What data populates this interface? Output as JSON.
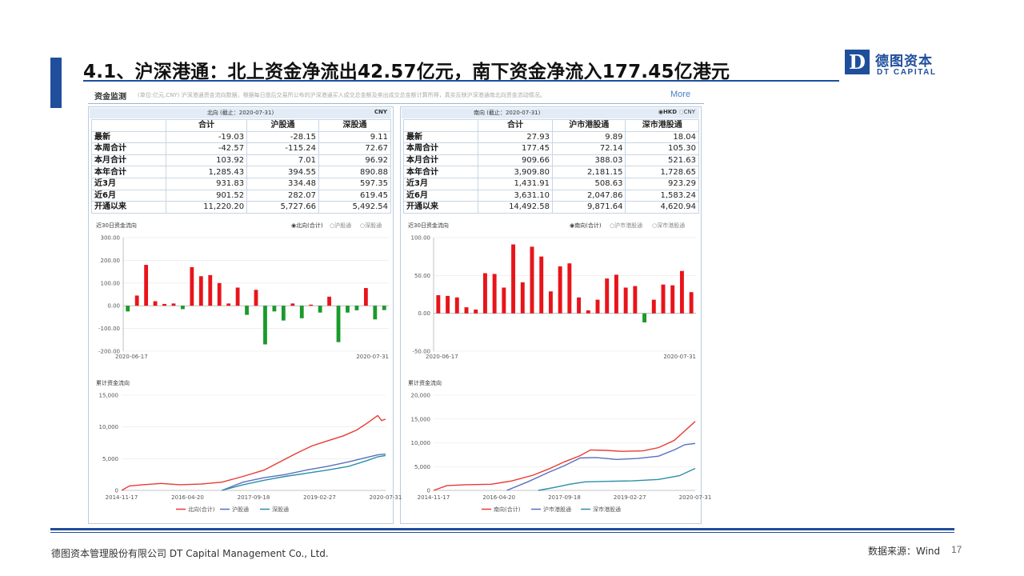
{
  "title": "4.1、沪深港通：北上资金净流出42.57亿元，南下资金净流入177.45亿港元",
  "logo": {
    "mark": "D",
    "cn": "德图资本",
    "en": "DT CAPITAL"
  },
  "panel": {
    "title": "资金监测",
    "desc": "(单位:亿元,CNY)  沪深港通资金流向数据，根据每日盘后交易所公布的沪深港通买入成交总金额及卖出成交总金额计算所得，真实反映沪深港通南北向资金流动情况。",
    "more": "More"
  },
  "north": {
    "head": "北向 (截止：2020-07-31)",
    "currency": "CNY",
    "columns": [
      "合计",
      "沪股通",
      "深股通"
    ],
    "rows": [
      {
        "label": "最新",
        "values": [
          "-19.03",
          "-28.15",
          "9.11"
        ]
      },
      {
        "label": "本周合计",
        "values": [
          "-42.57",
          "-115.24",
          "72.67"
        ]
      },
      {
        "label": "本月合计",
        "values": [
          "103.92",
          "7.01",
          "96.92"
        ]
      },
      {
        "label": "本年合计",
        "values": [
          "1,285.43",
          "394.55",
          "890.88"
        ]
      },
      {
        "label": "近3月",
        "values": [
          "931.83",
          "334.48",
          "597.35"
        ]
      },
      {
        "label": "近6月",
        "values": [
          "901.52",
          "282.07",
          "619.45"
        ]
      },
      {
        "label": "开通以来",
        "values": [
          "11,220.20",
          "5,727.66",
          "5,492.54"
        ]
      }
    ],
    "flow_title": "近30日资金流向",
    "radios": [
      "北向(合计)",
      "沪股通",
      "深股通"
    ],
    "cum_title": "累计资金流向",
    "cum_legend": [
      "北向(合计)",
      "沪股通",
      "深股通"
    ]
  },
  "south": {
    "head": "南向 (截止：2020-07-31)",
    "currency_opts": [
      "HKD",
      "CNY"
    ],
    "columns": [
      "合计",
      "沪市港股通",
      "深市港股通"
    ],
    "rows": [
      {
        "label": "最新",
        "values": [
          "27.93",
          "9.89",
          "18.04"
        ]
      },
      {
        "label": "本周合计",
        "values": [
          "177.45",
          "72.14",
          "105.30"
        ]
      },
      {
        "label": "本月合计",
        "values": [
          "909.66",
          "388.03",
          "521.63"
        ]
      },
      {
        "label": "本年合计",
        "values": [
          "3,909.80",
          "2,181.15",
          "1,728.65"
        ]
      },
      {
        "label": "近3月",
        "values": [
          "1,431.91",
          "508.63",
          "923.29"
        ]
      },
      {
        "label": "近6月",
        "values": [
          "3,631.10",
          "2,047.86",
          "1,583.24"
        ]
      },
      {
        "label": "开通以来",
        "values": [
          "14,492.58",
          "9,871.64",
          "4,620.94"
        ]
      }
    ],
    "flow_title": "近30日资金流向",
    "radios": [
      "南向(合计)",
      "沪市港股通",
      "深市港股通"
    ],
    "cum_title": "累计资金流向",
    "cum_legend": [
      "南向(合计)",
      "沪市港股通",
      "深市港股通"
    ]
  },
  "chart_data": [
    {
      "type": "bar",
      "title": "近30日资金流向",
      "x_start": "2020-06-17",
      "x_end": "2020-07-31",
      "ylim": [
        -200,
        300
      ],
      "yticks": [
        "300.00",
        "200.00",
        "100.00",
        "0.00",
        "-100.00",
        "-200.00"
      ],
      "values": [
        -25,
        45,
        180,
        20,
        8,
        10,
        -15,
        170,
        130,
        135,
        100,
        10,
        80,
        -40,
        70,
        -170,
        -25,
        -65,
        10,
        -55,
        5,
        -30,
        40,
        -160,
        -30,
        -20,
        78,
        -60,
        -19
      ],
      "positive_color": "#e8141a",
      "negative_color": "#1a9a2a"
    },
    {
      "type": "bar",
      "title": "近30日资金流向",
      "x_start": "2020-06-17",
      "x_end": "2020-07-31",
      "ylim": [
        -50,
        100
      ],
      "yticks": [
        "100.00",
        "50.00",
        "0.00",
        "-50.00"
      ],
      "values": [
        24,
        23,
        21,
        8,
        5,
        53,
        52,
        34,
        91,
        41,
        88,
        75,
        29,
        62,
        66,
        21,
        4,
        18,
        46,
        51,
        34,
        36,
        -12,
        18,
        38,
        37,
        56,
        28
      ],
      "positive_color": "#e8141a",
      "negative_color": "#1a9a2a"
    },
    {
      "type": "line",
      "title": "累计资金流向",
      "ylim": [
        0,
        15000
      ],
      "yticks": [
        "15,000",
        "10,000",
        "5,000",
        "0"
      ],
      "xticks": [
        "2014-11-17",
        "2016-04-20",
        "2017-09-18",
        "2019-02-27",
        "2020-07-31"
      ],
      "series": [
        {
          "name": "北向(合计)",
          "color": "#e83a33",
          "points": [
            [
              0,
              0
            ],
            [
              0.03,
              700
            ],
            [
              0.08,
              900
            ],
            [
              0.15,
              1100
            ],
            [
              0.22,
              900
            ],
            [
              0.3,
              1000
            ],
            [
              0.38,
              1300
            ],
            [
              0.46,
              2200
            ],
            [
              0.54,
              3200
            ],
            [
              0.6,
              4500
            ],
            [
              0.66,
              5800
            ],
            [
              0.72,
              7000
            ],
            [
              0.78,
              7800
            ],
            [
              0.84,
              8600
            ],
            [
              0.89,
              9500
            ],
            [
              0.93,
              10600
            ],
            [
              0.97,
              11800
            ],
            [
              0.985,
              11000
            ],
            [
              1,
              11220
            ]
          ]
        },
        {
          "name": "沪股通",
          "color": "#5a6fc0",
          "points": [
            [
              0.38,
              0
            ],
            [
              0.46,
              1300
            ],
            [
              0.54,
              2000
            ],
            [
              0.62,
              2500
            ],
            [
              0.7,
              3200
            ],
            [
              0.78,
              3800
            ],
            [
              0.86,
              4500
            ],
            [
              0.93,
              5200
            ],
            [
              0.97,
              5600
            ],
            [
              1,
              5727
            ]
          ]
        },
        {
          "name": "深股通",
          "color": "#2a8fa8",
          "points": [
            [
              0.38,
              0
            ],
            [
              0.46,
              900
            ],
            [
              0.54,
              1600
            ],
            [
              0.62,
              2200
            ],
            [
              0.7,
              2700
            ],
            [
              0.78,
              3200
            ],
            [
              0.86,
              3800
            ],
            [
              0.93,
              4700
            ],
            [
              0.97,
              5300
            ],
            [
              1,
              5492
            ]
          ]
        }
      ]
    },
    {
      "type": "line",
      "title": "累计资金流向",
      "ylim": [
        0,
        20000
      ],
      "yticks": [
        "20,000",
        "15,000",
        "10,000",
        "5,000",
        "0"
      ],
      "xticks": [
        "2014-11-17",
        "2016-04-20",
        "2017-09-18",
        "2019-02-27",
        "2020-07-31"
      ],
      "series": [
        {
          "name": "南向(合计)",
          "color": "#e83a33",
          "points": [
            [
              0,
              0
            ],
            [
              0.05,
              1000
            ],
            [
              0.12,
              1200
            ],
            [
              0.22,
              1300
            ],
            [
              0.3,
              2000
            ],
            [
              0.38,
              3200
            ],
            [
              0.44,
              4500
            ],
            [
              0.5,
              6000
            ],
            [
              0.56,
              7300
            ],
            [
              0.6,
              8500
            ],
            [
              0.66,
              8400
            ],
            [
              0.72,
              8200
            ],
            [
              0.8,
              8300
            ],
            [
              0.86,
              9000
            ],
            [
              0.92,
              10500
            ],
            [
              0.96,
              12500
            ],
            [
              1,
              14492
            ]
          ]
        },
        {
          "name": "沪市港股通",
          "color": "#5a6fc0",
          "points": [
            [
              0.28,
              0
            ],
            [
              0.36,
              1800
            ],
            [
              0.44,
              3800
            ],
            [
              0.5,
              5200
            ],
            [
              0.56,
              6800
            ],
            [
              0.62,
              6900
            ],
            [
              0.7,
              6500
            ],
            [
              0.78,
              6700
            ],
            [
              0.86,
              7200
            ],
            [
              0.92,
              8500
            ],
            [
              0.96,
              9600
            ],
            [
              1,
              9871
            ]
          ]
        },
        {
          "name": "深市港股通",
          "color": "#2a8fa8",
          "points": [
            [
              0.4,
              0
            ],
            [
              0.46,
              600
            ],
            [
              0.52,
              1300
            ],
            [
              0.58,
              1800
            ],
            [
              0.66,
              1900
            ],
            [
              0.76,
              2000
            ],
            [
              0.86,
              2300
            ],
            [
              0.94,
              3100
            ],
            [
              1,
              4620
            ]
          ]
        }
      ]
    }
  ],
  "footer": {
    "company": "德图资本管理股份有限公司  DT Capital Management  Co., Ltd.",
    "source": "数据来源：Wind",
    "page": "17"
  }
}
